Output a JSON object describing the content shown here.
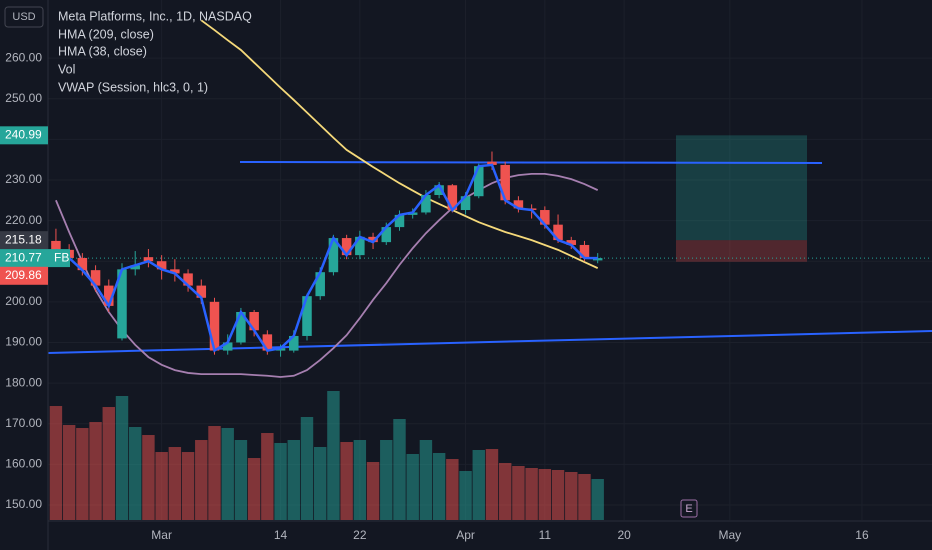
{
  "chart_data": {
    "type": "candlestick",
    "title": "Meta Platforms, Inc., 1D, NASDAQ",
    "currency": "USD",
    "symbol": "FB",
    "volume_name": "Vol",
    "vwap_name": "VWAP (Session, hlc3, 0, 1)",
    "event_marker": "E",
    "xlim": [
      -0.6,
      66.3
    ],
    "xticks": [
      {
        "value": 8,
        "label": "Mar"
      },
      {
        "value": 17,
        "label": "14"
      },
      {
        "value": 23,
        "label": "22"
      },
      {
        "value": 31,
        "label": "Apr"
      },
      {
        "value": 37,
        "label": "11"
      },
      {
        "value": 43,
        "label": "20"
      },
      {
        "value": 51,
        "label": "May"
      },
      {
        "value": 61,
        "label": "16"
      }
    ],
    "ylim": [
      146.3,
      274.3
    ],
    "yticks": [
      {
        "value": 150,
        "label": "150.00"
      },
      {
        "value": 160,
        "label": "160.00"
      },
      {
        "value": 170,
        "label": "170.00"
      },
      {
        "value": 180,
        "label": "180.00"
      },
      {
        "value": 190,
        "label": "190.00"
      },
      {
        "value": 200,
        "label": "200.00"
      },
      {
        "value": 210,
        "label": "210.00"
      },
      {
        "value": 220,
        "label": "220.00"
      },
      {
        "value": 230,
        "label": "230.00"
      },
      {
        "value": 240,
        "label": "240.00"
      },
      {
        "value": 250,
        "label": "250.00"
      },
      {
        "value": 260,
        "label": "260.00"
      }
    ],
    "grid": true,
    "up_color": "#26a69a",
    "down_color": "#ef5350",
    "line_color": "#2962ff",
    "open": [
      215,
      212.8,
      210.8,
      207.8,
      204,
      191,
      208,
      211,
      210,
      208,
      207,
      204,
      200,
      188,
      190,
      197.5,
      192,
      188,
      188,
      191.6,
      201.4,
      207.3,
      215.7,
      211.5,
      216,
      214.7,
      218.4,
      221.4,
      222,
      226.3,
      228.7,
      222.6,
      226,
      234.5,
      233.7,
      225,
      223,
      222.6,
      219,
      215.2,
      214,
      210.2
    ],
    "high": [
      218,
      214.2,
      212,
      209,
      205.5,
      209.5,
      212.5,
      213,
      211.5,
      210.5,
      208,
      205.5,
      201,
      192,
      198.5,
      198,
      193,
      189.5,
      193,
      202,
      208.5,
      216.5,
      216.5,
      217.5,
      217,
      219.5,
      222.5,
      223,
      227.5,
      229.5,
      229,
      227,
      234,
      237,
      234.5,
      226,
      224,
      223.5,
      221.5,
      216,
      215,
      212
    ],
    "low": [
      211.5,
      209.5,
      206.5,
      202.5,
      197.5,
      190.5,
      206.5,
      208.5,
      205.5,
      205,
      202.5,
      199.5,
      187,
      187,
      189.5,
      191.5,
      187,
      186.5,
      187.5,
      190.5,
      200.5,
      206.5,
      210.5,
      210.5,
      213,
      214,
      217.5,
      220.5,
      221.5,
      225.5,
      222,
      221.5,
      225.5,
      232.5,
      224,
      222,
      220.5,
      218,
      214.5,
      213,
      210,
      209.5
    ],
    "close": [
      212.8,
      210.8,
      207.8,
      204,
      199,
      208,
      209,
      210,
      208,
      207,
      204,
      201,
      188,
      190,
      197.5,
      193,
      188,
      188.6,
      191.6,
      201.4,
      207.3,
      215.7,
      211.5,
      216,
      214.7,
      218.4,
      221.4,
      222,
      226.3,
      228.7,
      222.6,
      226,
      233.4,
      233.7,
      225,
      223,
      222.6,
      219,
      215.2,
      214,
      210.8,
      210.77
    ],
    "volume_ylim": [
      0,
      200
    ],
    "volume": [
      79.8,
      66.5,
      64.4,
      68.6,
      79.1,
      86.8,
      65.1,
      59.5,
      47.6,
      51.1,
      47.6,
      56,
      65.8,
      64.4,
      56,
      43.4,
      60.9,
      53.9,
      56,
      72.1,
      51.1,
      90.3,
      54.6,
      56,
      40.6,
      56,
      70.7,
      46.2,
      56,
      46.9,
      42.7,
      34.3,
      49,
      49.7,
      39.9,
      37.8,
      36.4,
      35.7,
      35,
      33.6,
      32.2,
      28.7
    ],
    "series": [
      {
        "name": "HMA (209, close)",
        "color": "#f5d97a",
        "values": [
          null,
          null,
          null,
          null,
          null,
          null,
          null,
          null,
          null,
          null,
          null,
          269.3,
          266.9,
          264.4,
          262,
          258.9,
          255.8,
          252.7,
          249.7,
          246.6,
          243.5,
          240.4,
          237.4,
          235.3,
          233.2,
          231.2,
          229.2,
          227.4,
          225.6,
          224.1,
          222.6,
          221.1,
          219.6,
          218.4,
          217.2,
          216.2,
          215.2,
          214,
          212.8,
          211.3,
          209.8,
          208.3
        ]
      },
      {
        "name": "HMA (38, close)",
        "color": "#a67fb0",
        "values": [
          225,
          217.2,
          209.8,
          202.9,
          197.5,
          193.1,
          189.4,
          186.4,
          184.5,
          183.2,
          182.5,
          182.2,
          182.2,
          182.2,
          182.2,
          182,
          181.8,
          181.5,
          181.8,
          183.2,
          185.7,
          188.6,
          191.8,
          196,
          200.5,
          204.6,
          209.1,
          213.2,
          216.9,
          220.1,
          223.1,
          225.6,
          227.5,
          229.2,
          230.5,
          231.2,
          231.5,
          231.5,
          231,
          230.2,
          229,
          227.5
        ]
      }
    ],
    "price_labels": {
      "target": 240.99,
      "entry": 215.18,
      "last": 210.77,
      "stop": 209.86
    }
  }
}
